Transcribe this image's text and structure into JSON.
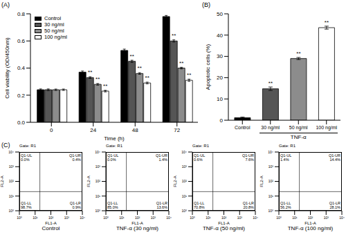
{
  "chart_data": [
    {
      "type": "bar",
      "title": "(A)",
      "x_label": "Time (h)",
      "y_label": "Cell viability (OD/450nm)",
      "categories": [
        "0",
        "24",
        "48",
        "72"
      ],
      "series": [
        {
          "name": "Control",
          "color": "#000000",
          "values": [
            0.24,
            0.37,
            0.53,
            0.78
          ],
          "errors": [
            0.006,
            0.008,
            0.01,
            0.008
          ]
        },
        {
          "name": "30 ng/ml",
          "color": "#555555",
          "values": [
            0.24,
            0.33,
            0.45,
            0.6
          ],
          "errors": [
            0.006,
            0.006,
            0.008,
            0.008
          ],
          "annotations": [
            null,
            "**",
            "**",
            "**"
          ]
        },
        {
          "name": "50 ng/ml",
          "color": "#8c8c8c",
          "values": [
            0.24,
            0.28,
            0.36,
            0.4
          ],
          "errors": [
            0.005,
            0.006,
            0.006,
            0.006
          ],
          "annotations": [
            null,
            "**",
            "**",
            "**"
          ]
        },
        {
          "name": "100 ng/ml",
          "color": "#ffffff",
          "values": [
            0.24,
            0.23,
            0.29,
            0.31
          ],
          "errors": [
            0.005,
            0.006,
            0.006,
            0.008
          ],
          "annotations": [
            null,
            "**",
            "**",
            "**"
          ]
        }
      ],
      "ylim": [
        0,
        0.8
      ],
      "yticks": [
        {
          "value": 0,
          "label": "0.0"
        },
        0.2,
        0.4,
        0.6,
        0.8
      ],
      "legend": "upper left"
    },
    {
      "type": "bar",
      "title": "(B)",
      "y_label": "Apoptotic cells (%)",
      "categories": [
        "Control",
        "30 ng/ml",
        "50 ng/ml",
        "100 ng/ml"
      ],
      "values": [
        1.2,
        14.8,
        29.0,
        43.5
      ],
      "errors": [
        0.3,
        0.8,
        0.5,
        0.7
      ],
      "annotations": [
        null,
        "**",
        "**",
        "**"
      ],
      "colors": [
        "#000000",
        "#555555",
        "#8c8c8c",
        "#ffffff"
      ],
      "group": {
        "label": "TNF-α",
        "categories": [
          "30 ng/ml",
          "50 ng/ml",
          "100 ng/ml"
        ]
      },
      "ylim": [
        0,
        50
      ],
      "yticks": [
        0,
        10,
        20,
        30,
        40,
        50
      ]
    },
    {
      "type": "scatter",
      "title": "(C)",
      "x_label": "FL1-A",
      "y_label": "FL2-A",
      "log": true,
      "xlim": [
        1,
        10000
      ],
      "ylim": [
        1,
        10000
      ],
      "xticks": [
        {
          "value": 1,
          "label": "10⁰"
        },
        {
          "value": 10,
          "label": "10¹"
        },
        {
          "value": 100,
          "label": "10²"
        },
        {
          "value": 1000,
          "label": "10³"
        },
        {
          "value": 10000,
          "label": "10⁴"
        }
      ],
      "yticks": [
        {
          "value": 1,
          "label": "10⁰"
        },
        {
          "value": 10,
          "label": "10¹"
        },
        {
          "value": 100,
          "label": "10²"
        },
        {
          "value": 1000,
          "label": "10³"
        },
        {
          "value": 10000,
          "label": "10⁴"
        }
      ],
      "threshold": [
        20,
        20
      ],
      "plots": [
        {
          "gate": "Gate: R1",
          "caption": "Control",
          "quadrants": [
            "Q1-UL",
            "Q1-UR",
            "Q1-LL",
            "Q1-LR"
          ],
          "values": [
            0.0,
            0.4,
            98.7,
            0.9
          ],
          "value_labels": [
            "0.0%",
            "0.4%",
            "98.7%",
            "0.9%"
          ]
        },
        {
          "gate": "Gate: R1",
          "caption": "TNF-α (30 ng/ml)",
          "quadrants": [
            "Q1-UL",
            "Q1-UR",
            "Q1-LL",
            "Q1-LR"
          ],
          "values": [
            0.0,
            1.4,
            85.0,
            13.6
          ],
          "value_labels": [
            "0.0%",
            "1.4%",
            "85.0%",
            "13.6%"
          ]
        },
        {
          "gate": "Gate: R1",
          "caption": "TNF-α (50 ng/ml)",
          "quadrants": [
            "Q1-UL",
            "Q1-UR",
            "Q1-LL",
            "Q1-LR"
          ],
          "values": [
            0.6,
            7.6,
            70.8,
            20.8
          ],
          "value_labels": [
            "0.6%",
            "7.6%",
            "70.8%",
            "20.8%"
          ]
        },
        {
          "gate": "Gate: R1",
          "caption": "TNF-α (100 ng/ml)",
          "quadrants": [
            "Q1-UL",
            "Q1-UR",
            "Q1-LL",
            "Q1-LR"
          ],
          "values": [
            1.4,
            14.4,
            56.2,
            28.1
          ],
          "value_labels": [
            "1.4%",
            "14.4%",
            "56.2%",
            "28.1%"
          ]
        }
      ]
    }
  ]
}
